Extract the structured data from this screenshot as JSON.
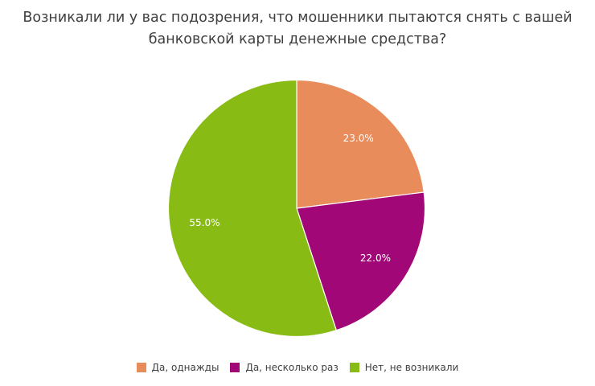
{
  "chart_data": {
    "type": "pie",
    "title_lines": [
      "Возникали ли у вас подозрения, что мошенники пытаются снять с вашей",
      "банковской карты денежные средства?"
    ],
    "categories": [
      "Да, однажды",
      "Да, несколько раз",
      "Нет, не возникали"
    ],
    "values": [
      23.0,
      22.0,
      55.0
    ],
    "data_labels": [
      "23.0%",
      "22.0%",
      "55.0%"
    ],
    "colors": [
      "#e98c5b",
      "#a10776",
      "#88bc14"
    ],
    "start_angle": "top",
    "direction": "clockwise",
    "legend_position": "bottom"
  }
}
